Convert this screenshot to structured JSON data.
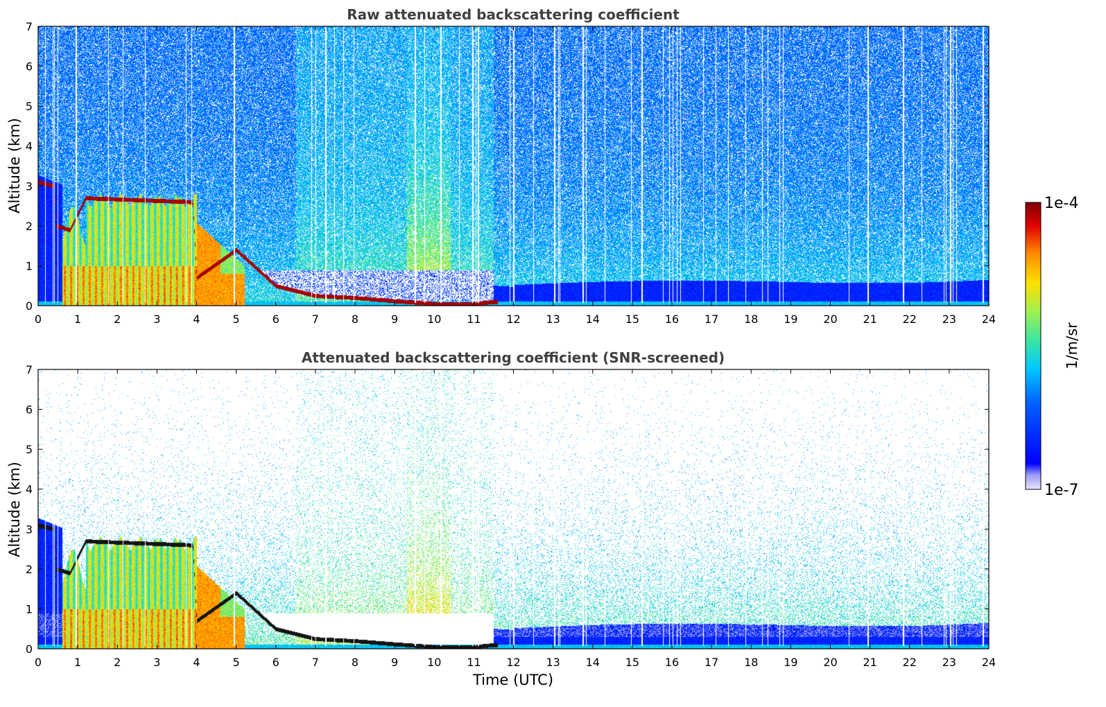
{
  "chart_data": [
    {
      "type": "heatmap",
      "title": "Raw attenuated backscattering coefficient",
      "xlabel": "",
      "ylabel": "Altitude (km)",
      "xlim": [
        0,
        24
      ],
      "ylim": [
        0,
        7
      ],
      "xticks": [
        "0",
        "1",
        "2",
        "3",
        "4",
        "5",
        "6",
        "7",
        "8",
        "9",
        "10",
        "11",
        "12",
        "13",
        "14",
        "15",
        "16",
        "17",
        "18",
        "19",
        "20",
        "21",
        "22",
        "23",
        "24"
      ],
      "yticks": [
        "0",
        "1",
        "2",
        "3",
        "4",
        "5",
        "6",
        "7"
      ],
      "grid": false,
      "features": [
        {
          "name": "cloud layer",
          "x_range": [
            0.6,
            4.0
          ],
          "top_km": 2.8,
          "color_range": "green-yellow-orange"
        },
        {
          "name": "cloud layer",
          "x_range": [
            4.0,
            5.2
          ],
          "top_km": 1.9,
          "color_range": "orange"
        },
        {
          "name": "boundary layer top",
          "points": [
            [
              0.0,
              3.1
            ],
            [
              0.4,
              3.0
            ],
            [
              0.45,
              2.0
            ],
            [
              0.8,
              1.9
            ],
            [
              1.2,
              2.7
            ],
            [
              3.9,
              2.6
            ],
            [
              4.0,
              0.7
            ],
            [
              5.0,
              1.4
            ],
            [
              6.0,
              0.5
            ],
            [
              7.0,
              0.25
            ],
            [
              8.0,
              0.2
            ],
            [
              9.0,
              0.12
            ],
            [
              10.0,
              0.05
            ],
            [
              11.0,
              0.05
            ],
            [
              11.5,
              0.1
            ]
          ]
        },
        {
          "name": "aerosol column",
          "x_range": [
            9.3,
            10.4
          ],
          "top_km": 5.5
        }
      ]
    },
    {
      "type": "heatmap",
      "title": "Attenuated backscattering coefficient (SNR-screened)",
      "xlabel": "Time (UTC)",
      "ylabel": "Altitude (km)",
      "xlim": [
        0,
        24
      ],
      "ylim": [
        0,
        7
      ],
      "xticks": [
        "0",
        "1",
        "2",
        "3",
        "4",
        "5",
        "6",
        "7",
        "8",
        "9",
        "10",
        "11",
        "12",
        "13",
        "14",
        "15",
        "16",
        "17",
        "18",
        "19",
        "20",
        "21",
        "22",
        "23",
        "24"
      ],
      "yticks": [
        "0",
        "1",
        "2",
        "3",
        "4",
        "5",
        "6",
        "7"
      ],
      "grid": false
    }
  ],
  "colorbar": {
    "label": "1/m/sr",
    "max_label": "1e-4",
    "min_label": "1e-7",
    "scale": "log",
    "range": [
      1e-07,
      0.0001
    ],
    "colormap": [
      "#e8e8fc",
      "#0000ff",
      "#00c8ff",
      "#3ce6a0",
      "#c8f03c",
      "#ffd700",
      "#ff8000",
      "#e00000",
      "#7f0000"
    ]
  }
}
